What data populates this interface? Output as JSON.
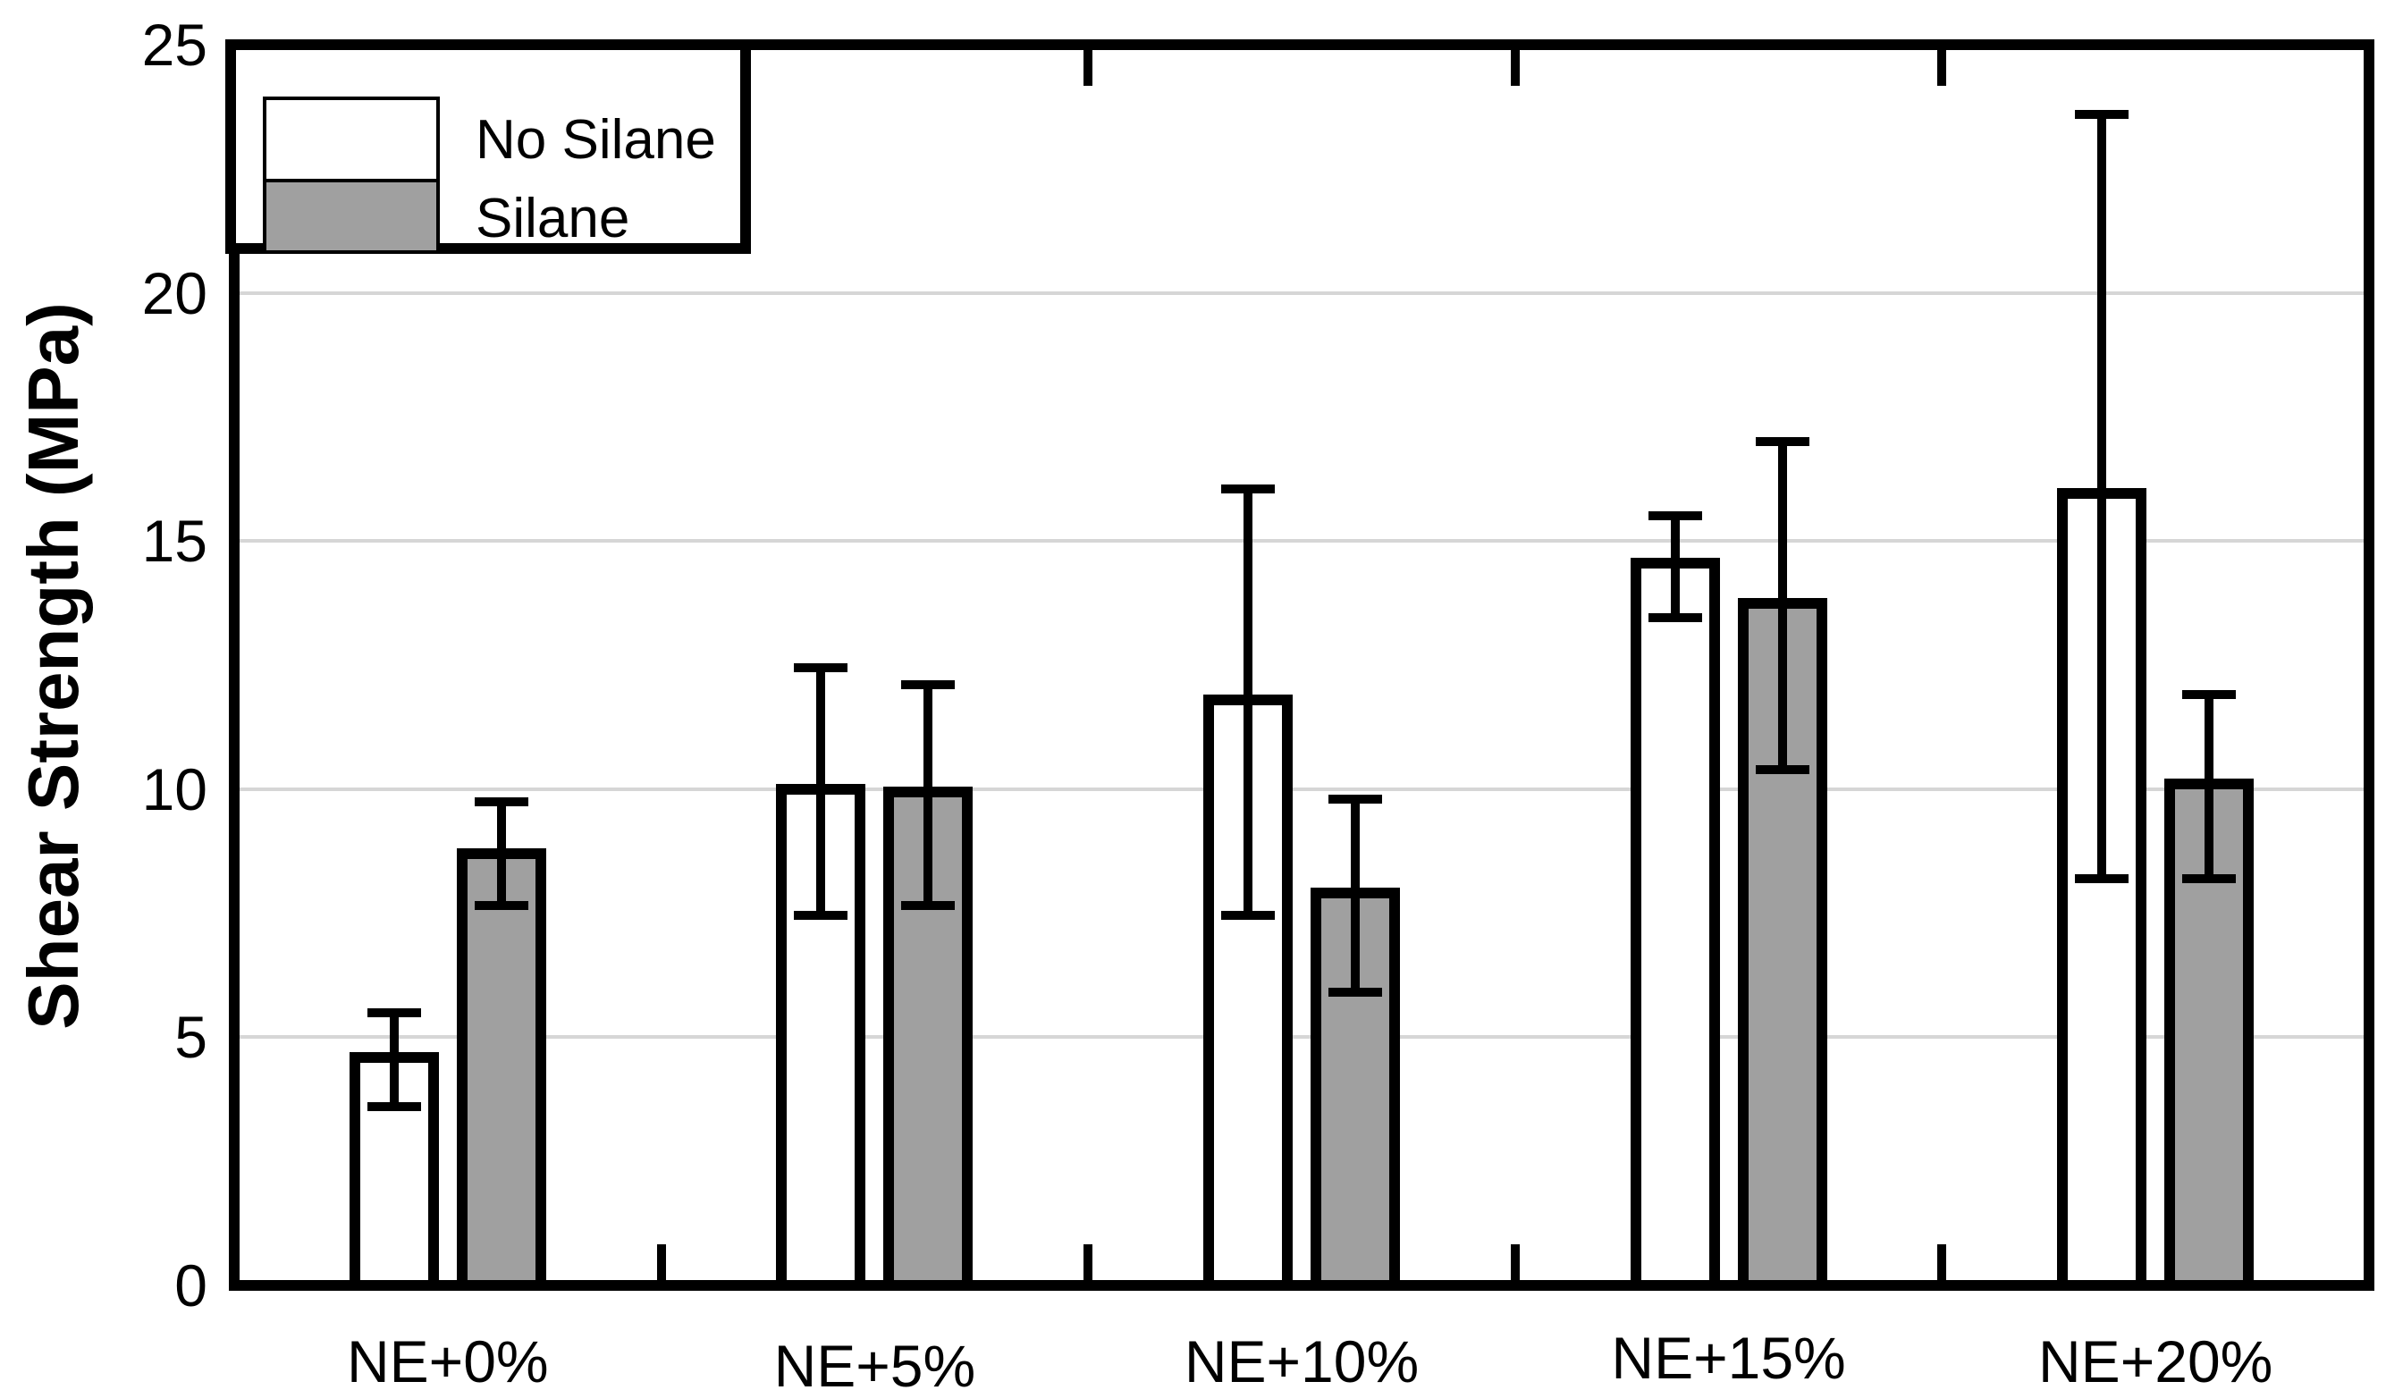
{
  "figure": {
    "background": "#ffffff"
  },
  "y_axis": {
    "title": "Shear Strength (MPa)",
    "tick_labels": [
      "0",
      "5",
      "10",
      "15",
      "20",
      "25"
    ]
  },
  "x_axis": {
    "tick_labels": [
      "NE+0%",
      "NE+5%",
      "NE+10%",
      "NE+15%",
      "NE+20%"
    ]
  },
  "legend": {
    "items": [
      {
        "label": "No Silane",
        "fill": "#ffffff"
      },
      {
        "label": "Silane",
        "fill": "#a0a0a0"
      }
    ]
  },
  "colors": {
    "axis": "#000000",
    "grid": "#d6d6d6",
    "bar_border": "#000000",
    "no_silane_fill": "#ffffff",
    "silane_fill": "#a0a0a0"
  },
  "chart_data": {
    "type": "bar",
    "title": "",
    "xlabel": "",
    "ylabel": "Shear Strength (MPa)",
    "categories": [
      "NE+0%",
      "NE+5%",
      "NE+10%",
      "NE+15%",
      "NE+20%"
    ],
    "series": [
      {
        "name": "No Silane",
        "fill": "#ffffff",
        "values": [
          4.6,
          10.0,
          11.8,
          14.55,
          15.95
        ],
        "error_low": [
          3.6,
          7.45,
          7.45,
          13.45,
          8.2
        ],
        "error_high": [
          5.5,
          12.45,
          16.05,
          15.5,
          23.6
        ]
      },
      {
        "name": "Silane",
        "fill": "#a0a0a0",
        "values": [
          8.7,
          9.95,
          7.9,
          13.75,
          10.1
        ],
        "error_low": [
          7.65,
          7.65,
          5.9,
          10.4,
          8.2
        ],
        "error_high": [
          9.75,
          12.1,
          9.8,
          17.0,
          11.9
        ]
      }
    ],
    "ylim": [
      0,
      25
    ],
    "yticks": [
      0,
      5,
      10,
      15,
      20,
      25
    ],
    "grid": true,
    "grid_ticks": [
      5,
      10,
      15,
      20
    ],
    "legend_position": "top-left"
  }
}
